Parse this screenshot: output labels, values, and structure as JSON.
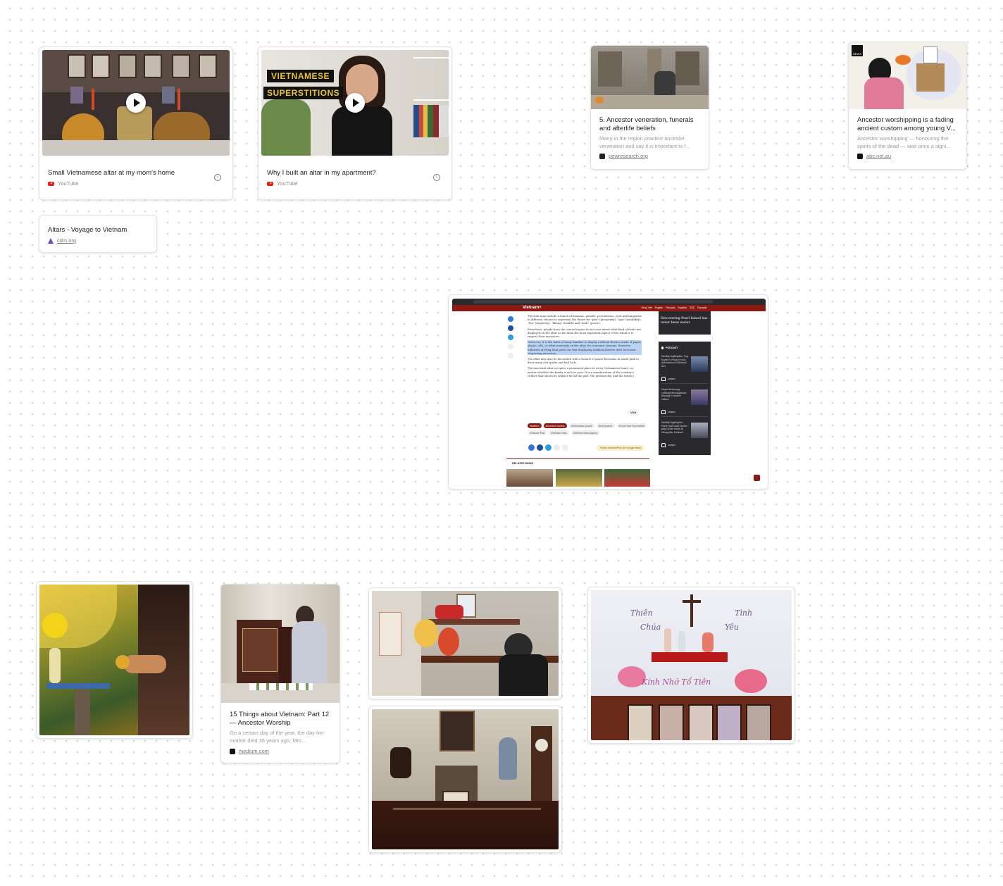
{
  "cards": {
    "video1": {
      "title": "Small Vietnamese altar at my mom's home",
      "source": "YouTube"
    },
    "video2": {
      "title": "Why I built an altar in my apartment?",
      "source": "YouTube",
      "overlay_line1": "VIETNAMESE",
      "overlay_line2": "SUPERSTITIONS"
    },
    "pew": {
      "title": "5. Ancestor veneration, funerals and afterlife beliefs",
      "desc": "Many in the region practice ancestor veneration and say it is important to f...",
      "link": "pewresearch.org"
    },
    "abc": {
      "title": "Ancestor worshipping is a fading ancient custom among young V...",
      "desc": "Ancestor worshipping — honouring the spirits of the dead — was once a signi...",
      "link": "abc.net.au",
      "badge": "NEWS"
    },
    "cdm": {
      "title": "Altars - Voyage to Vietnam",
      "link": "cdm.org"
    },
    "medium": {
      "title": "15 Things about Vietnam: Part 12 — Ancestor Worship",
      "desc": "On a certain day of the year, the day her mother died 35 years ago, Mrs...",
      "link": "medium.com"
    }
  },
  "screenshot": {
    "logo": "Vietnam+",
    "lang_links": [
      "Tiếng Việt",
      "English",
      "Français",
      "Español",
      "中文",
      "Pусский"
    ],
    "para1": "The fruit may include a bunch of bananas, pomelo, persimmons, pear and tangerine in different colours to represent the desire for \"phu\" (prosperity), \"quy\" (notability), \"tho\" (longevity), \"khang\" (health) and \"ninh\" (peace).",
    "para2": "Elsewhere, people from the central region do not care about what kind of fruits are displayed on the altar as for them the most important aspect of the ritual is to respect their ancestors.",
    "para3_highlight": "Moreover, it is the habit of many families to display artificial flowers made of paper, plastic, silk, or other materials on the altar, for economic reasons. However, followers of Feng Shui point out that displaying artificial flowers does not mean respecting ancestors.",
    "para4": "The altar may also be decorated with a branch of peach blossoms in warm pink to drive away evil spirits and bad luck.",
    "para5": "The ancestral altar occupies a prominent place in every Vietnamese home, no matter whether the family is rich or poor. It is a manifestation of the country's culture that shows its respect for all the past, the present day, and the future./.",
    "byline": "VNA",
    "tags": [
      "#tradition",
      "#Ancestor worship",
      "#Vietnamese people",
      "#fruit practice",
      "#Lunar New Year festival",
      "#Vietnam Plus",
      "#Vietnam news",
      "#Vietnam News Agency"
    ],
    "follow": "Follow VietnamPlus   On Google News",
    "related": "RELATED NEWS",
    "sidebar_title": "Discovering Pearl Island has never been easier",
    "podcast": "PODCAST",
    "podcast_items": [
      "Weekly highlights: Top leader's France visit, milestone in bilateral ties",
      "Hanoi fostering cultural development through creative values",
      "Weekly highlights: Party and state leader pays state visits to Mongolia, Ireland"
    ],
    "listen": "LISTEN"
  },
  "altar_text": {
    "w1": "Thiên",
    "w2": "Chúa",
    "w3": "Tình",
    "w4": "Yêu",
    "w5": "Kính Nhớ Tổ Tiên"
  },
  "colors": {
    "youtube": "#e62117",
    "vnplus_red": "#8b1a12",
    "highlight": "#b9d3f5"
  }
}
